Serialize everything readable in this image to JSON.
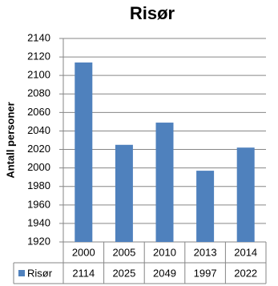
{
  "chart_data": {
    "type": "bar",
    "title": "Risør",
    "y_label": "Antall personer",
    "categories": [
      "2000",
      "2005",
      "2010",
      "2013",
      "2014"
    ],
    "series": [
      {
        "name": "Risør",
        "color": "#4f81bd",
        "values": [
          2114,
          2025,
          2049,
          1997,
          2022
        ]
      }
    ],
    "ylim": [
      1920,
      2140
    ],
    "yticks": [
      1920,
      1940,
      1960,
      1980,
      2000,
      2020,
      2040,
      2060,
      2080,
      2100,
      2120,
      2140
    ],
    "grid": true
  }
}
